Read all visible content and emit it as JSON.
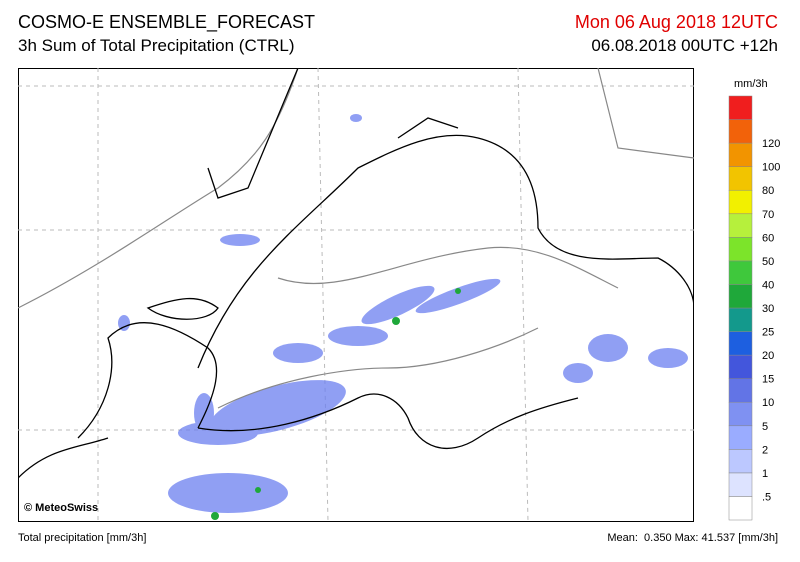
{
  "header": {
    "title": "COSMO-E ENSEMBLE_FORECAST",
    "subtitle": "3h Sum of Total Precipitation (CTRL)",
    "valid_time": "Mon 06 Aug 2018 12UTC",
    "run_time": "06.08.2018 00UTC +12h"
  },
  "legend": {
    "unit": "mm/3h",
    "labels": [
      ".5",
      "1",
      "2",
      "5",
      "10",
      "15",
      "20",
      "25",
      "30",
      "40",
      "50",
      "60",
      "70",
      "80",
      "100",
      "120"
    ],
    "colors": [
      "#ffffff",
      "#dde3ff",
      "#bcc8ff",
      "#9aacff",
      "#7f91f2",
      "#6274e6",
      "#4356dc",
      "#1d5fe0",
      "#13998c",
      "#1fa83a",
      "#3fc83c",
      "#7ce42a",
      "#b6f03c",
      "#f2f000",
      "#f2c400",
      "#f29400",
      "#f2620a",
      "#f01e1e"
    ]
  },
  "map": {
    "copyright": "© MeteoSwiss"
  },
  "footer": {
    "left": "Total precipitation [mm/3h]",
    "mean_label": "Mean:",
    "mean": "0.350",
    "max_label": "Max:",
    "max": "41.537",
    "unit": "[mm/3h]"
  }
}
